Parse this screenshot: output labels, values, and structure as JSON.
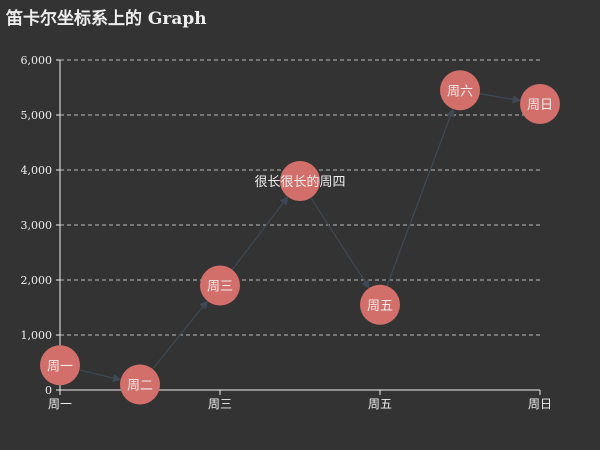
{
  "chart_data": {
    "type": "graph",
    "title": "笛卡尔坐标系上的 Graph",
    "categories": [
      "周一",
      "周二",
      "周三",
      "周四",
      "周五",
      "周六",
      "周日"
    ],
    "x_tick_labels": [
      "周一",
      "周三",
      "周五",
      "周日"
    ],
    "y_ticks": [
      0,
      1000,
      2000,
      3000,
      4000,
      5000,
      6000
    ],
    "y_tick_labels": [
      "0",
      "1,000",
      "2,000",
      "3,000",
      "4,000",
      "5,000",
      "6,000"
    ],
    "ylim": [
      0,
      6000
    ],
    "grid": "y-dashed",
    "nodes": [
      {
        "category": "周一",
        "value": 450,
        "label": "周一"
      },
      {
        "category": "周二",
        "value": 100,
        "label": "周二"
      },
      {
        "category": "周三",
        "value": 1900,
        "label": "周三"
      },
      {
        "category": "周四",
        "value": 3800,
        "label": "很长很长的周四"
      },
      {
        "category": "周五",
        "value": 1550,
        "label": "周五"
      },
      {
        "category": "周六",
        "value": 5450,
        "label": "周六"
      },
      {
        "category": "周日",
        "value": 5200,
        "label": "周日"
      }
    ],
    "links": [
      {
        "source": 0,
        "target": 1
      },
      {
        "source": 1,
        "target": 2
      },
      {
        "source": 2,
        "target": 3
      },
      {
        "source": 3,
        "target": 4
      },
      {
        "source": 4,
        "target": 5
      },
      {
        "source": 5,
        "target": 6
      }
    ],
    "colors": {
      "background": "#333333",
      "node": "#d36f6a",
      "link": "#3d4a55",
      "text": "#eeeeee",
      "axis": "#eeeeee",
      "grid": "#bbbbbb"
    }
  }
}
